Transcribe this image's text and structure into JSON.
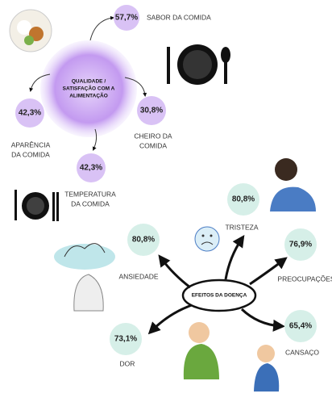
{
  "food_quality": {
    "center_lines": [
      "QUALIDADE /",
      "SATISFAÇÃO COM A",
      "ALIMENTAÇÃO"
    ],
    "items": [
      {
        "value": "57,7%",
        "label_lines": [
          "SABOR DA COMIDA"
        ]
      },
      {
        "value": "42,3%",
        "label_lines": [
          "APARÊNCIA",
          "DA COMIDA"
        ]
      },
      {
        "value": "30,8%",
        "label_lines": [
          "CHEIRO DA",
          "COMIDA"
        ]
      },
      {
        "value": "42,3%",
        "label_lines": [
          "TEMPERATURA",
          "DA COMIDA"
        ]
      }
    ]
  },
  "disease_effects": {
    "center_lines": [
      "EFEITOS DA DOENÇA"
    ],
    "items": [
      {
        "value": "80,8%",
        "label_lines": [
          "TRISTEZA"
        ]
      },
      {
        "value": "76,9%",
        "label_lines": [
          "PREOCUPAÇÕES"
        ]
      },
      {
        "value": "65,4%",
        "label_lines": [
          "CANSAÇO"
        ]
      },
      {
        "value": "73,1%",
        "label_lines": [
          "DOR"
        ]
      },
      {
        "value": "80,8%",
        "label_lines": [
          "ANSIEDADE"
        ]
      }
    ]
  }
}
